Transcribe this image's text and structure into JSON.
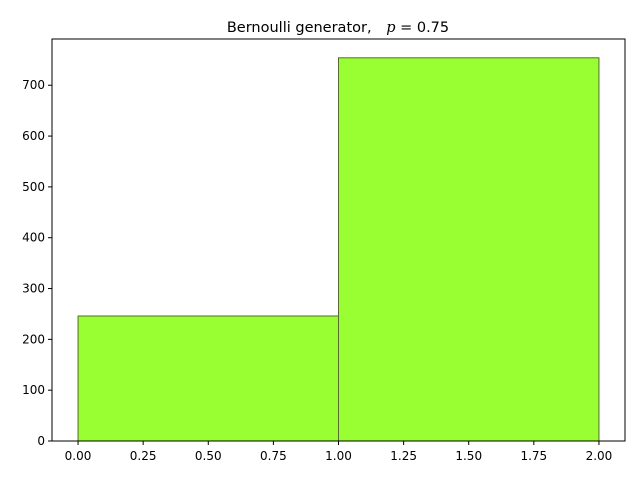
{
  "chart_data": {
    "type": "bar",
    "title_prefix": "Bernoulli generator,",
    "title_var": "p",
    "title_eq": " = 0.75",
    "bins": [
      {
        "x0": 0.0,
        "x1": 1.0,
        "value": 246
      },
      {
        "x0": 1.0,
        "x1": 2.0,
        "value": 754
      }
    ],
    "xlim": [
      -0.1,
      2.1
    ],
    "ylim": [
      0,
      791
    ],
    "xticks": [
      0.0,
      0.25,
      0.5,
      0.75,
      1.0,
      1.25,
      1.5,
      1.75,
      2.0
    ],
    "xtick_labels": [
      "0.00",
      "0.25",
      "0.50",
      "0.75",
      "1.00",
      "1.25",
      "1.50",
      "1.75",
      "2.00"
    ],
    "yticks": [
      0,
      100,
      200,
      300,
      400,
      500,
      600,
      700
    ],
    "ytick_labels": [
      "0",
      "100",
      "200",
      "300",
      "400",
      "500",
      "600",
      "700"
    ],
    "xlabel": "",
    "ylabel": "",
    "grid": false,
    "colors": {
      "bar_fill": "#99ff33",
      "bar_edge": "#556b2f",
      "axes": "#000000"
    }
  }
}
